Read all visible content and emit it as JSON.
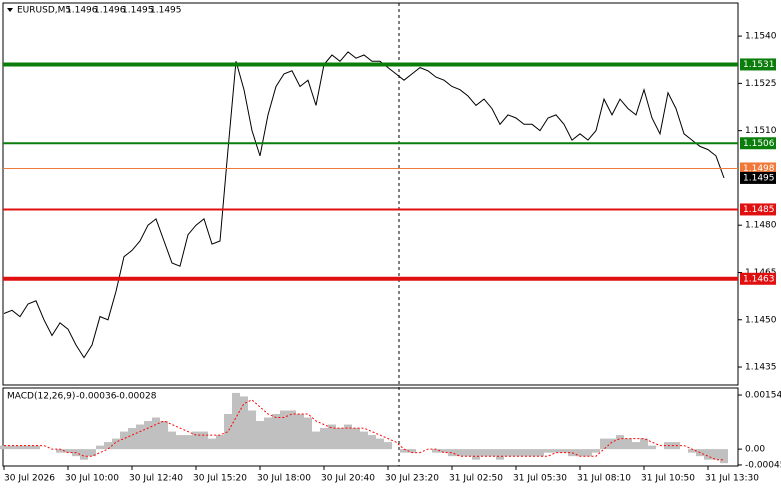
{
  "chart_data": [
    {
      "type": "line",
      "title": "EURUSD,M5",
      "ohlc": [
        1.1496,
        1.1496,
        1.1495,
        1.1495
      ],
      "ylim": [
        1.14293,
        1.15505
      ],
      "yticks": [
        {
          "value": 1.154,
          "label": "1.1540"
        },
        {
          "value": 1.1525,
          "label": "1.1525"
        },
        {
          "value": 1.151,
          "label": "1.1510"
        },
        {
          "value": 1.148,
          "label": "1.1480"
        },
        {
          "value": 1.1465,
          "label": "1.1465"
        },
        {
          "value": 1.145,
          "label": "1.1450"
        },
        {
          "value": 1.1435,
          "label": "1.1435"
        }
      ],
      "series": [
        {
          "color": "#000000",
          "values": [
            1.1452,
            1.1453,
            1.1451,
            1.1455,
            1.1456,
            1.145,
            1.1445,
            1.1449,
            1.1447,
            1.1442,
            1.1438,
            1.1442,
            1.1451,
            1.145,
            1.1459,
            1.147,
            1.1472,
            1.1475,
            1.148,
            1.1482,
            1.1475,
            1.1468,
            1.1467,
            1.1477,
            1.148,
            1.1482,
            1.1474,
            1.1475,
            1.1504,
            1.1532,
            1.1523,
            1.151,
            1.1502,
            1.1515,
            1.1524,
            1.1528,
            1.1529,
            1.1524,
            1.1526,
            1.1518,
            1.1531,
            1.1534,
            1.1532,
            1.1535,
            1.1533,
            1.1534,
            1.1532,
            1.1532,
            1.153,
            1.1528,
            1.1526,
            1.1528,
            1.153,
            1.1529,
            1.1527,
            1.1526,
            1.1524,
            1.1523,
            1.1521,
            1.1518,
            1.152,
            1.1517,
            1.1512,
            1.1515,
            1.1514,
            1.1512,
            1.1512,
            1.151,
            1.1514,
            1.1515,
            1.1512,
            1.1507,
            1.1509,
            1.1507,
            1.151,
            1.152,
            1.1515,
            1.152,
            1.1517,
            1.1515,
            1.1523,
            1.1514,
            1.1509,
            1.1522,
            1.1517,
            1.1509,
            1.1507,
            1.1505,
            1.1504,
            1.1502,
            1.1495
          ]
        }
      ],
      "levels": [
        {
          "value": 1.1531,
          "color": "#0a7d0a",
          "style": "thick"
        },
        {
          "value": 1.1506,
          "color": "#0a7d0a",
          "style": "normal"
        },
        {
          "value": 1.1498,
          "color": "#f07838",
          "style": "thin"
        },
        {
          "value": 1.1485,
          "color": "#e01010",
          "style": "normal"
        },
        {
          "value": 1.1463,
          "color": "#e01010",
          "style": "thick"
        }
      ],
      "last_price": 1.1495
    },
    {
      "type": "macd",
      "title": "MACD(12,26,9)",
      "indicator_values": [
        -0.00036,
        -0.00028
      ],
      "xlim": [
        -0.125,
        91.75
      ],
      "xticks": [
        {
          "value": 0,
          "label": "30 Jul 2026"
        },
        {
          "value": 8,
          "label": "30 Jul 10:00"
        },
        {
          "value": 16,
          "label": "30 Jul 12:40"
        },
        {
          "value": 24,
          "label": "30 Jul 15:20"
        },
        {
          "value": 32,
          "label": "30 Jul 18:00"
        },
        {
          "value": 40,
          "label": "30 Jul 20:40"
        },
        {
          "value": 48,
          "label": "30 Jul 23:20"
        },
        {
          "value": 56,
          "label": "31 Jul 02:50"
        },
        {
          "value": 64,
          "label": "31 Jul 05:30"
        },
        {
          "value": 72,
          "label": "31 Jul 08:10"
        },
        {
          "value": 80,
          "label": "31 Jul 10:50"
        },
        {
          "value": 88,
          "label": "31 Jul 13:30"
        }
      ],
      "ylim": [
        -0.00048,
        0.00174
      ],
      "yticks": [
        0.00154,
        {
          "value": 0,
          "label": "0.00"
        },
        -0.00045
      ],
      "series": [
        {
          "type": "bar",
          "color": "#c0c0c0",
          "values": [
            0.0001,
            0.0001,
            0.0001,
            0.0001,
            0.0001,
            0,
            0,
            -0.0001,
            -0.0001,
            -0.0002,
            -0.0003,
            -0.0002,
            0.0001,
            0.0002,
            0.0003,
            0.0005,
            0.0006,
            0.0007,
            0.0008,
            0.0009,
            0.0008,
            0.0005,
            0.0004,
            0.0004,
            0.0005,
            0.0005,
            0.0003,
            0.0004,
            0.001,
            0.0016,
            0.0015,
            0.0011,
            0.0008,
            0.0009,
            0.001,
            0.0011,
            0.0011,
            0.001,
            0.0009,
            0.0005,
            0.0006,
            0.0007,
            0.0006,
            0.0007,
            0.0006,
            0.0005,
            0.0004,
            0.0003,
            0.0002,
            0,
            -0.0001,
            -0.0001,
            0,
            0,
            -0.0001,
            -0.0001,
            -0.0002,
            -0.0002,
            -0.0002,
            -0.0003,
            -0.0002,
            -0.0002,
            -0.0003,
            -0.0002,
            -0.0002,
            -0.0002,
            -0.0002,
            -0.0002,
            -0.0001,
            -0.0001,
            -0.0001,
            -0.0002,
            -0.0002,
            -0.0002,
            -0.0001,
            0.0003,
            0.0003,
            0.0004,
            0.0003,
            0.0002,
            0.0003,
            0.0001,
            0,
            0.0002,
            0.0002,
            0,
            -0.0001,
            -0.0002,
            -0.0003,
            -0.0003,
            -0.0004
          ]
        },
        {
          "type": "line",
          "color": "#ff0000",
          "values": [
            0.0001,
            0.0001,
            0.0001,
            0.0001,
            0.0001,
            0.0001,
            0,
            0,
            -0.0001,
            -0.0001,
            -0.0002,
            -0.0002,
            -0.0001,
            0,
            0.0002,
            0.0003,
            0.0004,
            0.0005,
            0.0006,
            0.0007,
            0.0008,
            0.0007,
            0.0006,
            0.0005,
            0.0004,
            0.0004,
            0.0004,
            0.0004,
            0.0005,
            0.0009,
            0.0013,
            0.0014,
            0.0012,
            0.001,
            0.0009,
            0.0009,
            0.001,
            0.001,
            0.001,
            0.0008,
            0.0007,
            0.0006,
            0.0006,
            0.0006,
            0.0006,
            0.0006,
            0.0005,
            0.0004,
            0.0003,
            0.0002,
            0,
            -0.0001,
            -0.0001,
            0,
            0,
            -0.0001,
            -0.0001,
            -0.0002,
            -0.0002,
            -0.0002,
            -0.0002,
            -0.0002,
            -0.0002,
            -0.0002,
            -0.0002,
            -0.0002,
            -0.0002,
            -0.0002,
            -0.0002,
            -0.0001,
            -0.0001,
            -0.0001,
            -0.0002,
            -0.0002,
            -0.0002,
            0,
            0.0002,
            0.0003,
            0.0003,
            0.0003,
            0.0003,
            0.0002,
            0.0001,
            0.0001,
            0.0001,
            0.0001,
            0,
            -0.0001,
            -0.0002,
            -0.0003,
            -0.0003
          ]
        }
      ]
    }
  ]
}
